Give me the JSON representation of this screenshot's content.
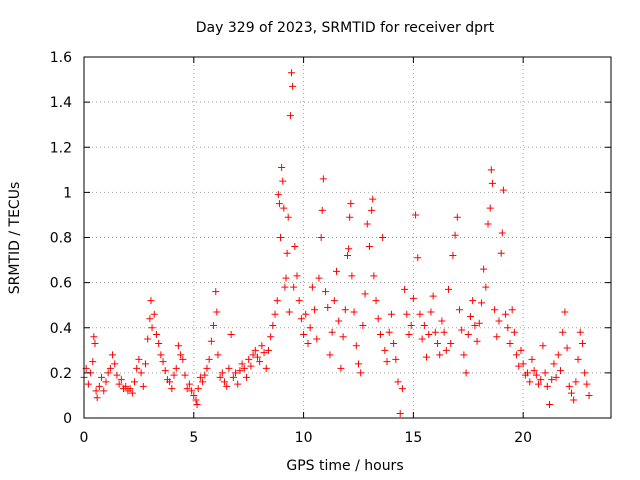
{
  "chart_data": {
    "type": "scatter",
    "title": "Day 329 of 2023, SRMTID for receiver dprt",
    "xlabel": "GPS time / hours",
    "ylabel": "SRMTID / TECUs",
    "xlim": [
      0,
      24
    ],
    "ylim": [
      0,
      1.6
    ],
    "xticks": [
      0,
      5,
      10,
      15,
      20
    ],
    "xtick_labels": [
      "0",
      "5",
      "10",
      "15",
      "20"
    ],
    "yticks": [
      0,
      0.2,
      0.4,
      0.6,
      0.8,
      1.0,
      1.2,
      1.4,
      1.6
    ],
    "ytick_labels": [
      "0",
      "0.2",
      "0.4",
      "0.6",
      "0.8",
      "1",
      "1.2",
      "1.4",
      "1.6"
    ],
    "grid": true,
    "marker": "+",
    "series": [
      {
        "name": "SRMTID",
        "color": "#ff0000",
        "points": [
          [
            0.0,
            0.18
          ],
          [
            0.1,
            0.22
          ],
          [
            0.2,
            0.15
          ],
          [
            0.3,
            0.2
          ],
          [
            0.4,
            0.25
          ],
          [
            0.45,
            0.36
          ],
          [
            0.5,
            0.33
          ],
          [
            0.55,
            0.12
          ],
          [
            0.6,
            0.09
          ],
          [
            0.7,
            0.14
          ],
          [
            0.8,
            0.18
          ],
          [
            0.9,
            0.12
          ],
          [
            1.0,
            0.16
          ],
          [
            1.1,
            0.2
          ],
          [
            1.2,
            0.22
          ],
          [
            1.3,
            0.28
          ],
          [
            1.4,
            0.24
          ],
          [
            1.5,
            0.19
          ],
          [
            1.6,
            0.15
          ],
          [
            1.7,
            0.17
          ],
          [
            1.8,
            0.13
          ],
          [
            1.9,
            0.14
          ],
          [
            2.0,
            0.12
          ],
          [
            2.1,
            0.13
          ],
          [
            2.2,
            0.11
          ],
          [
            2.3,
            0.16
          ],
          [
            2.4,
            0.22
          ],
          [
            2.5,
            0.26
          ],
          [
            2.6,
            0.2
          ],
          [
            2.7,
            0.14
          ],
          [
            2.8,
            0.24
          ],
          [
            2.9,
            0.35
          ],
          [
            3.0,
            0.44
          ],
          [
            3.05,
            0.52
          ],
          [
            3.1,
            0.4
          ],
          [
            3.2,
            0.46
          ],
          [
            3.3,
            0.37
          ],
          [
            3.4,
            0.33
          ],
          [
            3.5,
            0.28
          ],
          [
            3.6,
            0.25
          ],
          [
            3.7,
            0.21
          ],
          [
            3.8,
            0.17
          ],
          [
            3.9,
            0.16
          ],
          [
            4.0,
            0.13
          ],
          [
            4.1,
            0.19
          ],
          [
            4.2,
            0.22
          ],
          [
            4.3,
            0.32
          ],
          [
            4.4,
            0.28
          ],
          [
            4.5,
            0.26
          ],
          [
            4.6,
            0.19
          ],
          [
            4.7,
            0.13
          ],
          [
            4.8,
            0.15
          ],
          [
            4.9,
            0.12
          ],
          [
            5.0,
            0.1
          ],
          [
            5.1,
            0.08
          ],
          [
            5.15,
            0.06
          ],
          [
            5.2,
            0.13
          ],
          [
            5.3,
            0.18
          ],
          [
            5.4,
            0.16
          ],
          [
            5.5,
            0.19
          ],
          [
            5.6,
            0.22
          ],
          [
            5.7,
            0.26
          ],
          [
            5.8,
            0.34
          ],
          [
            5.9,
            0.41
          ],
          [
            6.0,
            0.56
          ],
          [
            6.05,
            0.47
          ],
          [
            6.1,
            0.28
          ],
          [
            6.2,
            0.18
          ],
          [
            6.3,
            0.2
          ],
          [
            6.4,
            0.16
          ],
          [
            6.5,
            0.14
          ],
          [
            6.6,
            0.22
          ],
          [
            6.7,
            0.37
          ],
          [
            6.8,
            0.18
          ],
          [
            6.9,
            0.2
          ],
          [
            7.0,
            0.15
          ],
          [
            7.1,
            0.21
          ],
          [
            7.2,
            0.24
          ],
          [
            7.3,
            0.22
          ],
          [
            7.4,
            0.18
          ],
          [
            7.5,
            0.26
          ],
          [
            7.6,
            0.23
          ],
          [
            7.7,
            0.28
          ],
          [
            7.8,
            0.3
          ],
          [
            7.9,
            0.27
          ],
          [
            8.0,
            0.25
          ],
          [
            8.1,
            0.32
          ],
          [
            8.2,
            0.29
          ],
          [
            8.3,
            0.22
          ],
          [
            8.4,
            0.3
          ],
          [
            8.5,
            0.36
          ],
          [
            8.6,
            0.41
          ],
          [
            8.7,
            0.46
          ],
          [
            8.8,
            0.52
          ],
          [
            8.85,
            0.99
          ],
          [
            8.9,
            0.95
          ],
          [
            8.95,
            0.8
          ],
          [
            9.0,
            1.11
          ],
          [
            9.05,
            1.05
          ],
          [
            9.1,
            0.93
          ],
          [
            9.15,
            0.58
          ],
          [
            9.2,
            0.62
          ],
          [
            9.25,
            0.73
          ],
          [
            9.3,
            0.89
          ],
          [
            9.35,
            0.47
          ],
          [
            9.4,
            1.34
          ],
          [
            9.45,
            1.53
          ],
          [
            9.5,
            1.47
          ],
          [
            9.55,
            0.58
          ],
          [
            9.6,
            0.76
          ],
          [
            9.7,
            0.63
          ],
          [
            9.8,
            0.52
          ],
          [
            9.9,
            0.44
          ],
          [
            10.0,
            0.37
          ],
          [
            10.1,
            0.46
          ],
          [
            10.2,
            0.33
          ],
          [
            10.3,
            0.4
          ],
          [
            10.4,
            0.58
          ],
          [
            10.5,
            0.48
          ],
          [
            10.6,
            0.35
          ],
          [
            10.7,
            0.62
          ],
          [
            10.8,
            0.8
          ],
          [
            10.85,
            0.92
          ],
          [
            10.9,
            1.06
          ],
          [
            11.0,
            0.56
          ],
          [
            11.1,
            0.49
          ],
          [
            11.2,
            0.28
          ],
          [
            11.3,
            0.38
          ],
          [
            11.4,
            0.52
          ],
          [
            11.5,
            0.65
          ],
          [
            11.6,
            0.43
          ],
          [
            11.7,
            0.22
          ],
          [
            11.8,
            0.36
          ],
          [
            11.9,
            0.48
          ],
          [
            12.0,
            0.72
          ],
          [
            12.05,
            0.75
          ],
          [
            12.1,
            0.89
          ],
          [
            12.15,
            0.95
          ],
          [
            12.2,
            0.63
          ],
          [
            12.3,
            0.47
          ],
          [
            12.4,
            0.32
          ],
          [
            12.5,
            0.24
          ],
          [
            12.6,
            0.2
          ],
          [
            12.7,
            0.41
          ],
          [
            12.8,
            0.55
          ],
          [
            12.9,
            0.86
          ],
          [
            13.0,
            0.76
          ],
          [
            13.1,
            0.92
          ],
          [
            13.15,
            0.97
          ],
          [
            13.2,
            0.63
          ],
          [
            13.3,
            0.52
          ],
          [
            13.4,
            0.44
          ],
          [
            13.5,
            0.37
          ],
          [
            13.6,
            0.8
          ],
          [
            13.7,
            0.3
          ],
          [
            13.8,
            0.25
          ],
          [
            13.9,
            0.38
          ],
          [
            14.0,
            0.46
          ],
          [
            14.1,
            0.33
          ],
          [
            14.2,
            0.26
          ],
          [
            14.3,
            0.16
          ],
          [
            14.4,
            0.02
          ],
          [
            14.5,
            0.13
          ],
          [
            14.6,
            0.57
          ],
          [
            14.7,
            0.46
          ],
          [
            14.8,
            0.37
          ],
          [
            14.9,
            0.41
          ],
          [
            15.0,
            0.53
          ],
          [
            15.1,
            0.9
          ],
          [
            15.2,
            0.71
          ],
          [
            15.3,
            0.46
          ],
          [
            15.4,
            0.35
          ],
          [
            15.5,
            0.41
          ],
          [
            15.6,
            0.27
          ],
          [
            15.7,
            0.37
          ],
          [
            15.8,
            0.47
          ],
          [
            15.9,
            0.54
          ],
          [
            16.0,
            0.38
          ],
          [
            16.1,
            0.33
          ],
          [
            16.2,
            0.28
          ],
          [
            16.3,
            0.43
          ],
          [
            16.4,
            0.38
          ],
          [
            16.5,
            0.3
          ],
          [
            16.6,
            0.57
          ],
          [
            16.7,
            0.33
          ],
          [
            16.8,
            0.72
          ],
          [
            16.9,
            0.81
          ],
          [
            17.0,
            0.89
          ],
          [
            17.1,
            0.48
          ],
          [
            17.2,
            0.39
          ],
          [
            17.3,
            0.28
          ],
          [
            17.4,
            0.2
          ],
          [
            17.5,
            0.37
          ],
          [
            17.6,
            0.45
          ],
          [
            17.7,
            0.52
          ],
          [
            17.8,
            0.41
          ],
          [
            17.9,
            0.34
          ],
          [
            18.0,
            0.42
          ],
          [
            18.1,
            0.51
          ],
          [
            18.2,
            0.66
          ],
          [
            18.3,
            0.58
          ],
          [
            18.4,
            0.86
          ],
          [
            18.5,
            0.93
          ],
          [
            18.55,
            1.1
          ],
          [
            18.6,
            1.04
          ],
          [
            18.7,
            0.48
          ],
          [
            18.8,
            0.36
          ],
          [
            18.9,
            0.43
          ],
          [
            19.0,
            0.73
          ],
          [
            19.05,
            0.82
          ],
          [
            19.1,
            1.01
          ],
          [
            19.2,
            0.46
          ],
          [
            19.3,
            0.4
          ],
          [
            19.4,
            0.33
          ],
          [
            19.5,
            0.48
          ],
          [
            19.6,
            0.38
          ],
          [
            19.7,
            0.28
          ],
          [
            19.8,
            0.23
          ],
          [
            19.9,
            0.3
          ],
          [
            20.0,
            0.24
          ],
          [
            20.1,
            0.19
          ],
          [
            20.2,
            0.2
          ],
          [
            20.3,
            0.16
          ],
          [
            20.4,
            0.26
          ],
          [
            20.5,
            0.21
          ],
          [
            20.6,
            0.19
          ],
          [
            20.7,
            0.15
          ],
          [
            20.8,
            0.17
          ],
          [
            20.9,
            0.32
          ],
          [
            21.0,
            0.2
          ],
          [
            21.1,
            0.14
          ],
          [
            21.2,
            0.06
          ],
          [
            21.3,
            0.17
          ],
          [
            21.4,
            0.24
          ],
          [
            21.5,
            0.18
          ],
          [
            21.6,
            0.28
          ],
          [
            21.7,
            0.21
          ],
          [
            21.8,
            0.38
          ],
          [
            21.9,
            0.47
          ],
          [
            22.0,
            0.31
          ],
          [
            22.1,
            0.14
          ],
          [
            22.2,
            0.11
          ],
          [
            22.3,
            0.08
          ],
          [
            22.4,
            0.16
          ],
          [
            22.5,
            0.26
          ],
          [
            22.6,
            0.38
          ],
          [
            22.7,
            0.33
          ],
          [
            22.8,
            0.2
          ],
          [
            22.9,
            0.15
          ],
          [
            23.0,
            0.1
          ]
        ]
      }
    ]
  }
}
